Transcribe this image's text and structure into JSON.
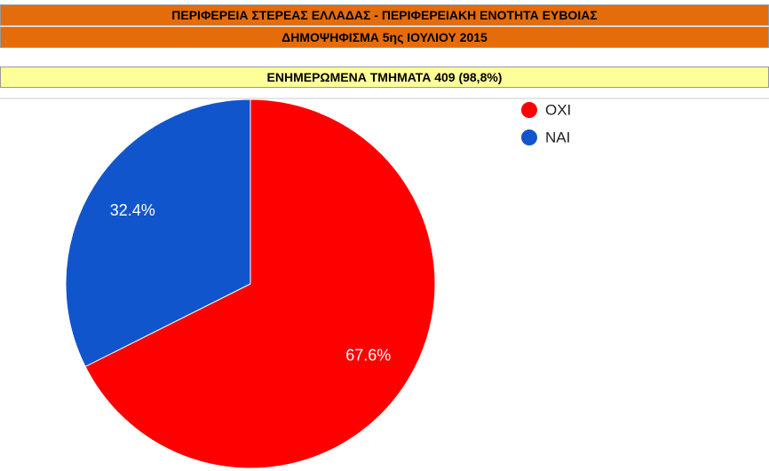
{
  "header": {
    "title": "ΠΕΡΙΦΕΡΕΙΑ ΣΤΕΡΕΑΣ ΕΛΛΑΔΑΣ - ΠΕΡΙΦΕΡΕΙΑΚΗ ΕΝΟΤΗΤΑ ΕΥΒΟΙΑΣ",
    "subtitle": "ΔΗΜΟΨΗΦΙΣΜΑ 5ης ΙΟΥΛΙΟΥ 2015",
    "status": "ΕΝΗΜΕΡΩΜΕΝΑ ΤΜΗΜΑΤΑ 409 (98,8%)"
  },
  "chart_data": {
    "type": "pie",
    "categories": [
      "ΟΧΙ",
      "ΝΑΙ"
    ],
    "values": [
      67.6,
      32.4
    ],
    "value_labels": [
      "67.6%",
      "32.4%"
    ],
    "colors": [
      "#ff0000",
      "#1155cc"
    ],
    "legend": "top-right"
  }
}
